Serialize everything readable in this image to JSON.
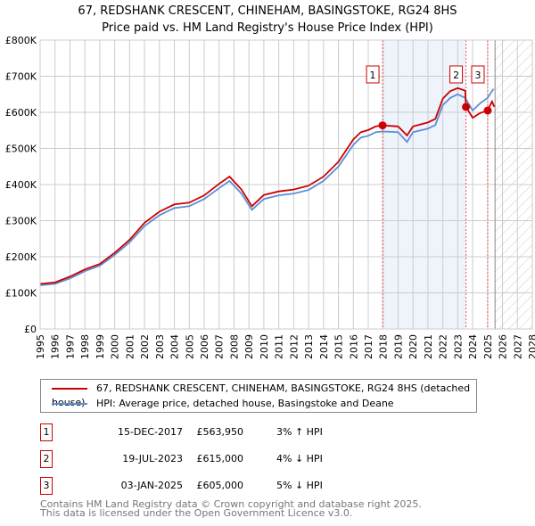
{
  "chart_data": {
    "type": "line",
    "title": "67, REDSHANK CRESCENT, CHINEHAM, BASINGSTOKE, RG24 8HS",
    "subtitle": "Price paid vs. HM Land Registry's House Price Index (HPI)",
    "xlim": [
      1995,
      2028
    ],
    "ylim": [
      0,
      800000
    ],
    "x_ticks": [
      "1995",
      "1996",
      "1997",
      "1998",
      "1999",
      "2000",
      "2001",
      "2002",
      "2003",
      "2004",
      "2005",
      "2006",
      "2007",
      "2008",
      "2009",
      "2010",
      "2011",
      "2012",
      "2013",
      "2014",
      "2015",
      "2016",
      "2017",
      "2018",
      "2019",
      "2020",
      "2021",
      "2022",
      "2023",
      "2024",
      "2025",
      "2026",
      "2027",
      "2028"
    ],
    "y_ticks": [
      {
        "v": 0,
        "l": "£0"
      },
      {
        "v": 100000,
        "l": "£100K"
      },
      {
        "v": 200000,
        "l": "£200K"
      },
      {
        "v": 300000,
        "l": "£300K"
      },
      {
        "v": 400000,
        "l": "£400K"
      },
      {
        "v": 500000,
        "l": "£500K"
      },
      {
        "v": 600000,
        "l": "£600K"
      },
      {
        "v": 700000,
        "l": "£700K"
      },
      {
        "v": 800000,
        "l": "£800K"
      }
    ],
    "grid": true,
    "series": [
      {
        "name": "67, REDSHANK CRESCENT, CHINEHAM, BASINGSTOKE, RG24 8HS (detached house)",
        "color": "#cc0000",
        "x": [
          1995,
          1996,
          1997,
          1998,
          1999,
          2000,
          2001,
          2002,
          2003,
          2004,
          2005,
          2006,
          2007,
          2007.7,
          2008.5,
          2009.2,
          2010,
          2011,
          2012,
          2013,
          2014,
          2015,
          2016,
          2016.5,
          2017,
          2017.5,
          2017.96,
          2019,
          2019.6,
          2020,
          2021,
          2021.5,
          2022,
          2022.5,
          2023,
          2023.5,
          2023.55,
          2024,
          2024.5,
          2025,
          2025.3,
          2025.45
        ],
        "y": [
          125000,
          129000,
          145000,
          165000,
          180000,
          211000,
          247000,
          294000,
          325000,
          345000,
          350000,
          370000,
          402000,
          422000,
          386000,
          340000,
          371000,
          381000,
          386000,
          397000,
          422000,
          463000,
          525000,
          545000,
          551000,
          561000,
          563950,
          561000,
          536000,
          561000,
          572000,
          582000,
          638000,
          659000,
          667000,
          660000,
          615000,
          585000,
          598000,
          605000,
          630000,
          615000
        ]
      },
      {
        "name": "HPI: Average price, detached house, Basingstoke and Deane",
        "color": "#5b8fd6",
        "x": [
          1995,
          1996,
          1997,
          1998,
          1999,
          2000,
          2001,
          2002,
          2003,
          2004,
          2005,
          2006,
          2007,
          2007.7,
          2008.5,
          2009.2,
          2010,
          2011,
          2012,
          2013,
          2014,
          2015,
          2016,
          2016.5,
          2017,
          2017.5,
          2018,
          2019,
          2019.6,
          2020,
          2021,
          2021.5,
          2022,
          2022.5,
          2023,
          2023.5,
          2024,
          2024.5,
          2025,
          2025.4
        ],
        "y": [
          121000,
          125000,
          140000,
          160000,
          175000,
          205000,
          240000,
          285000,
          315000,
          335000,
          340000,
          360000,
          390000,
          410000,
          375000,
          330000,
          360000,
          370000,
          375000,
          385000,
          410000,
          450000,
          510000,
          530000,
          535000,
          545000,
          547000,
          545000,
          518000,
          545000,
          555000,
          565000,
          620000,
          640000,
          650000,
          640000,
          605000,
          625000,
          640000,
          665000
        ]
      }
    ],
    "sales": [
      {
        "n": "1",
        "x": 2017.96,
        "date": "15-DEC-2017",
        "price": 563950,
        "price_label": "£563,950",
        "hpi": "3% ↑ HPI"
      },
      {
        "n": "2",
        "x": 2023.55,
        "date": "19-JUL-2023",
        "price": 615000,
        "price_label": "£615,000",
        "hpi": "4% ↓ HPI"
      },
      {
        "n": "3",
        "x": 2025.01,
        "date": "03-JAN-2025",
        "price": 605000,
        "price_label": "£605,000",
        "hpi": "5% ↓ HPI"
      }
    ],
    "shaded_range": [
      2017.96,
      2023.55
    ],
    "forecast_hatch_from": 2025.5
  },
  "footer": [
    "Contains HM Land Registry data © Crown copyright and database right 2025.",
    "This data is licensed under the Open Government Licence v3.0."
  ]
}
